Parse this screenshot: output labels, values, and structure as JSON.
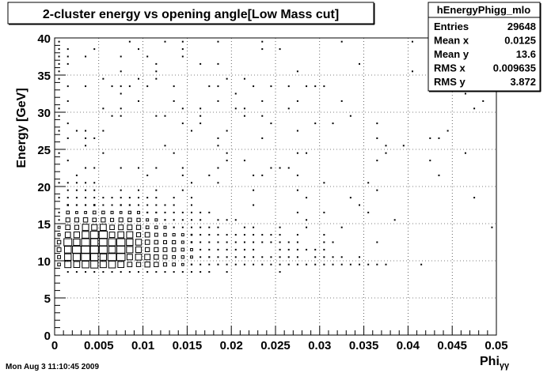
{
  "chart_data": {
    "type": "heatmap",
    "title": "2-cluster energy vs opening angle[Low Mass cut]",
    "xlabel_base": "Phi",
    "xlabel_sub": "γγ",
    "ylabel": "Energy [GeV]",
    "xlim": [
      0,
      0.05
    ],
    "ylim": [
      0,
      40
    ],
    "xticks": [
      "0",
      "0.005",
      "0.01",
      "0.015",
      "0.02",
      "0.025",
      "0.03",
      "0.035",
      "0.04",
      "0.045",
      "0.05"
    ],
    "yticks": [
      "0",
      "5",
      "10",
      "15",
      "20",
      "25",
      "30",
      "35",
      "40"
    ],
    "grid": true,
    "marker": "box",
    "bins": {
      "x": 50,
      "y": 40
    },
    "peak": {
      "x": 0.0045,
      "y": 11.5
    },
    "stats": {
      "name": "hEnergyPhigg_mlo",
      "rows": [
        {
          "label": "Entries",
          "value": "29648"
        },
        {
          "label": "Mean x",
          "value": "0.0125"
        },
        {
          "label": "Mean y",
          "value": "13.6"
        },
        {
          "label": "RMS x",
          "value": "0.009635"
        },
        {
          "label": "RMS y",
          "value": "3.872"
        }
      ]
    }
  },
  "footer": {
    "timestamp": "Mon Aug  3 11:10:45 2009"
  }
}
